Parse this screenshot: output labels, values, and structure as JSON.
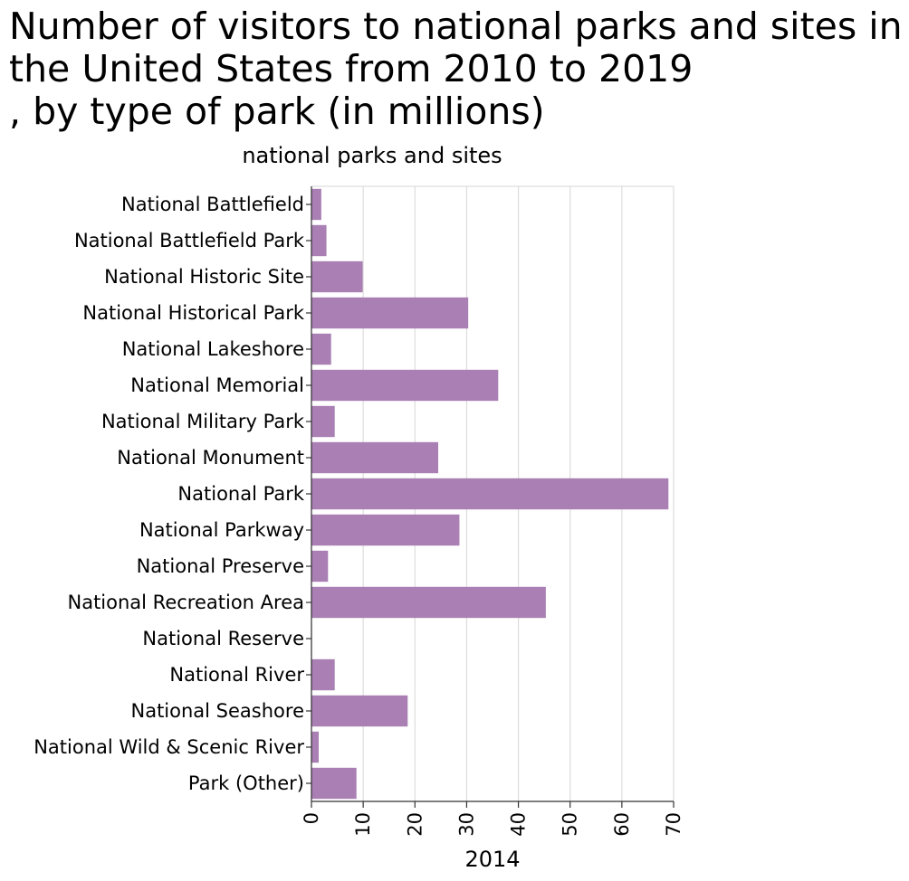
{
  "chart_data": {
    "type": "bar",
    "orientation": "horizontal",
    "title": "Number of visitors to national parks and sites in the United States from 2010 to 2019\n, by type of park (in millions)",
    "ylabel": "national parks and sites",
    "xlabel": "2014",
    "xlim": [
      0,
      70
    ],
    "xticks": [
      0,
      10,
      20,
      30,
      40,
      50,
      60,
      70
    ],
    "grid": true,
    "bar_color": "#a97fb4",
    "categories": [
      "National Battlefield",
      "National Battlefield Park",
      "National Historic Site",
      "National Historical Park",
      "National Lakeshore",
      "National Memorial",
      "National Military Park",
      "National Monument",
      "National Park",
      "National Parkway",
      "National Preserve",
      "National Recreation Area",
      "National Reserve",
      "National River",
      "National Seashore",
      "National Wild & Scenic River",
      "Park (Other)"
    ],
    "values": [
      1.9,
      2.9,
      9.9,
      30.3,
      3.8,
      36.1,
      4.5,
      24.5,
      69.0,
      28.6,
      3.2,
      45.3,
      0.1,
      4.5,
      18.6,
      1.4,
      8.7
    ]
  }
}
